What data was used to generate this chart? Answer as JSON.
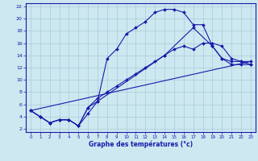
{
  "xlabel": "Graphe des températures (°c)",
  "bg_color": "#cde8f0",
  "grid_color": "#a8ccd8",
  "line_color": "#1a1aaa",
  "xlim": [
    -0.5,
    23.5
  ],
  "ylim": [
    1.5,
    22.5
  ],
  "xticks": [
    0,
    1,
    2,
    3,
    4,
    5,
    6,
    7,
    8,
    9,
    10,
    11,
    12,
    13,
    14,
    15,
    16,
    17,
    18,
    19,
    20,
    21,
    22,
    23
  ],
  "yticks": [
    2,
    4,
    6,
    8,
    10,
    12,
    14,
    16,
    18,
    20,
    22
  ],
  "curve1_x": [
    0,
    1,
    2,
    3,
    4,
    5,
    6,
    7,
    8,
    9,
    10,
    11,
    12,
    13,
    14,
    15,
    16,
    17,
    18,
    19,
    20,
    21,
    22,
    23
  ],
  "curve1_y": [
    5,
    4,
    3,
    3.5,
    3.5,
    2.5,
    4.5,
    6.5,
    13.5,
    15,
    17.5,
    18.5,
    19.5,
    21,
    21.5,
    21.5,
    21,
    19,
    19,
    15.5,
    13.5,
    12.5,
    12.5,
    12.5
  ],
  "curve2_x": [
    0,
    1,
    2,
    3,
    4,
    5,
    6,
    7,
    8,
    9,
    10,
    11,
    12,
    13,
    14,
    15,
    16,
    17,
    18,
    19,
    20,
    21,
    22,
    23
  ],
  "curve2_y": [
    5,
    4,
    3,
    3.5,
    3.5,
    2.5,
    5.5,
    7,
    8,
    9,
    10,
    11,
    12,
    13,
    14,
    15,
    15.5,
    15,
    16,
    16,
    15.5,
    13.5,
    13,
    12.5
  ],
  "curve3_x": [
    0,
    1,
    2,
    3,
    4,
    5,
    6,
    7,
    14,
    17,
    19,
    20,
    21,
    22,
    23
  ],
  "curve3_y": [
    5,
    4,
    3,
    3.5,
    3.5,
    2.5,
    5.5,
    6.5,
    14,
    18.5,
    15.5,
    13.5,
    13,
    13,
    13
  ],
  "curve4_x": [
    0,
    23
  ],
  "curve4_y": [
    5,
    13
  ]
}
